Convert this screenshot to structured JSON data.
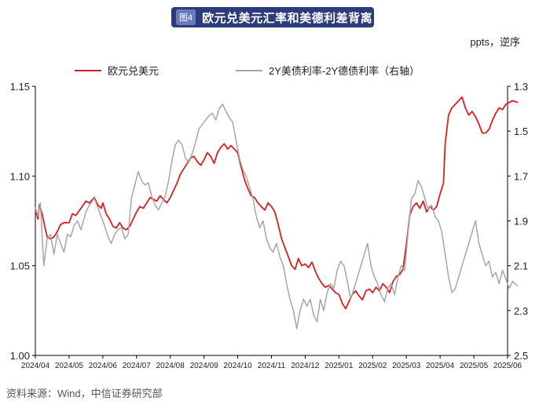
{
  "header": {
    "figure_badge": "图4",
    "title": "欧元兑美元汇率和美德利差背离"
  },
  "unit_label": "ppts，逆序",
  "source": "资料来源：Wind，中信证券研究部",
  "colors": {
    "eur": "#d81e1e",
    "spread": "#a6a6a6",
    "title_bg": "#2c3b7c"
  },
  "chart_data": {
    "type": "line",
    "title": "欧元兑美元汇率和美德利差背离",
    "x_ticks": [
      "2024/04",
      "2024/05",
      "2024/06",
      "2024/07",
      "2024/08",
      "2024/09",
      "2024/10",
      "2024/11",
      "2024/12",
      "2025/01",
      "2025/02",
      "2025/03",
      "2025/04",
      "2025/05",
      "2025/06"
    ],
    "y_left": {
      "min": 1.0,
      "max": 1.15,
      "ticks": [
        "1.00",
        "1.05",
        "1.10",
        "1.15"
      ]
    },
    "y_right": {
      "min": 1.3,
      "max": 2.5,
      "inverted": true,
      "ticks": [
        "1.3",
        "1.5",
        "1.7",
        "1.9",
        "2.1",
        "2.3",
        "2.5"
      ]
    },
    "series": [
      {
        "name": "欧元兑美元",
        "axis": "left",
        "color": "#d81e1e",
        "points": [
          [
            0.0,
            1.081
          ],
          [
            0.08,
            1.076
          ],
          [
            0.12,
            1.084
          ],
          [
            0.2,
            1.079
          ],
          [
            0.28,
            1.072
          ],
          [
            0.35,
            1.066
          ],
          [
            0.45,
            1.065
          ],
          [
            0.55,
            1.066
          ],
          [
            0.65,
            1.069
          ],
          [
            0.75,
            1.073
          ],
          [
            0.85,
            1.074
          ],
          [
            1.0,
            1.074
          ],
          [
            1.1,
            1.079
          ],
          [
            1.2,
            1.078
          ],
          [
            1.35,
            1.082
          ],
          [
            1.5,
            1.086
          ],
          [
            1.6,
            1.085
          ],
          [
            1.75,
            1.088
          ],
          [
            1.85,
            1.084
          ],
          [
            1.95,
            1.082
          ],
          [
            2.0,
            1.085
          ],
          [
            2.1,
            1.079
          ],
          [
            2.2,
            1.076
          ],
          [
            2.3,
            1.072
          ],
          [
            2.4,
            1.071
          ],
          [
            2.5,
            1.074
          ],
          [
            2.6,
            1.071
          ],
          [
            2.7,
            1.07
          ],
          [
            2.8,
            1.072
          ],
          [
            2.9,
            1.076
          ],
          [
            3.0,
            1.08
          ],
          [
            3.1,
            1.083
          ],
          [
            3.2,
            1.082
          ],
          [
            3.3,
            1.085
          ],
          [
            3.4,
            1.088
          ],
          [
            3.5,
            1.087
          ],
          [
            3.6,
            1.086
          ],
          [
            3.7,
            1.089
          ],
          [
            3.8,
            1.087
          ],
          [
            3.9,
            1.085
          ],
          [
            4.0,
            1.088
          ],
          [
            4.1,
            1.092
          ],
          [
            4.2,
            1.096
          ],
          [
            4.3,
            1.101
          ],
          [
            4.4,
            1.104
          ],
          [
            4.5,
            1.107
          ],
          [
            4.6,
            1.11
          ],
          [
            4.7,
            1.111
          ],
          [
            4.8,
            1.108
          ],
          [
            4.9,
            1.106
          ],
          [
            5.0,
            1.109
          ],
          [
            5.1,
            1.113
          ],
          [
            5.2,
            1.111
          ],
          [
            5.3,
            1.107
          ],
          [
            5.4,
            1.113
          ],
          [
            5.5,
            1.116
          ],
          [
            5.6,
            1.118
          ],
          [
            5.7,
            1.115
          ],
          [
            5.8,
            1.117
          ],
          [
            5.9,
            1.115
          ],
          [
            6.0,
            1.113
          ],
          [
            6.1,
            1.105
          ],
          [
            6.2,
            1.098
          ],
          [
            6.3,
            1.093
          ],
          [
            6.4,
            1.089
          ],
          [
            6.5,
            1.088
          ],
          [
            6.6,
            1.085
          ],
          [
            6.7,
            1.083
          ],
          [
            6.8,
            1.081
          ],
          [
            6.9,
            1.085
          ],
          [
            7.0,
            1.083
          ],
          [
            7.1,
            1.08
          ],
          [
            7.2,
            1.073
          ],
          [
            7.3,
            1.065
          ],
          [
            7.4,
            1.06
          ],
          [
            7.5,
            1.055
          ],
          [
            7.6,
            1.05
          ],
          [
            7.7,
            1.048
          ],
          [
            7.8,
            1.054
          ],
          [
            7.9,
            1.05
          ],
          [
            8.0,
            1.051
          ],
          [
            8.1,
            1.049
          ],
          [
            8.2,
            1.052
          ],
          [
            8.3,
            1.047
          ],
          [
            8.4,
            1.043
          ],
          [
            8.5,
            1.04
          ],
          [
            8.6,
            1.038
          ],
          [
            8.7,
            1.039
          ],
          [
            8.8,
            1.037
          ],
          [
            8.9,
            1.035
          ],
          [
            9.0,
            1.034
          ],
          [
            9.1,
            1.029
          ],
          [
            9.2,
            1.026
          ],
          [
            9.3,
            1.03
          ],
          [
            9.4,
            1.034
          ],
          [
            9.5,
            1.036
          ],
          [
            9.6,
            1.033
          ],
          [
            9.7,
            1.031
          ],
          [
            9.8,
            1.036
          ],
          [
            9.9,
            1.037
          ],
          [
            10.0,
            1.035
          ],
          [
            10.1,
            1.038
          ],
          [
            10.2,
            1.036
          ],
          [
            10.3,
            1.04
          ],
          [
            10.4,
            1.038
          ],
          [
            10.5,
            1.035
          ],
          [
            10.6,
            1.041
          ],
          [
            10.7,
            1.044
          ],
          [
            10.8,
            1.045
          ],
          [
            10.9,
            1.048
          ],
          [
            11.0,
            1.062
          ],
          [
            11.1,
            1.078
          ],
          [
            11.2,
            1.083
          ],
          [
            11.3,
            1.085
          ],
          [
            11.4,
            1.082
          ],
          [
            11.5,
            1.086
          ],
          [
            11.6,
            1.08
          ],
          [
            11.7,
            1.083
          ],
          [
            11.8,
            1.081
          ],
          [
            11.9,
            1.083
          ],
          [
            12.0,
            1.09
          ],
          [
            12.1,
            1.096
          ],
          [
            12.15,
            1.118
          ],
          [
            12.25,
            1.134
          ],
          [
            12.35,
            1.138
          ],
          [
            12.45,
            1.14
          ],
          [
            12.55,
            1.142
          ],
          [
            12.65,
            1.144
          ],
          [
            12.75,
            1.138
          ],
          [
            12.85,
            1.134
          ],
          [
            12.95,
            1.136
          ],
          [
            13.05,
            1.133
          ],
          [
            13.15,
            1.129
          ],
          [
            13.25,
            1.124
          ],
          [
            13.35,
            1.124
          ],
          [
            13.45,
            1.126
          ],
          [
            13.55,
            1.131
          ],
          [
            13.65,
            1.135
          ],
          [
            13.75,
            1.138
          ],
          [
            13.85,
            1.137
          ],
          [
            13.95,
            1.14
          ],
          [
            14.05,
            1.141
          ],
          [
            14.15,
            1.142
          ],
          [
            14.3,
            1.141
          ]
        ]
      },
      {
        "name": "2Y美债利率-2Y德债利率（右轴）",
        "axis": "right",
        "color": "#a6a6a6",
        "points": [
          [
            0.0,
            1.84
          ],
          [
            0.08,
            1.88
          ],
          [
            0.15,
            1.82
          ],
          [
            0.25,
            2.1
          ],
          [
            0.35,
            1.98
          ],
          [
            0.45,
            1.96
          ],
          [
            0.55,
            2.05
          ],
          [
            0.65,
            1.96
          ],
          [
            0.75,
            2.0
          ],
          [
            0.85,
            2.04
          ],
          [
            0.95,
            1.96
          ],
          [
            1.05,
            1.97
          ],
          [
            1.15,
            1.92
          ],
          [
            1.25,
            1.9
          ],
          [
            1.35,
            1.94
          ],
          [
            1.5,
            1.86
          ],
          [
            1.6,
            1.83
          ],
          [
            1.75,
            1.8
          ],
          [
            1.85,
            1.84
          ],
          [
            1.95,
            1.88
          ],
          [
            2.05,
            1.92
          ],
          [
            2.15,
            1.97
          ],
          [
            2.25,
            2.0
          ],
          [
            2.35,
            1.96
          ],
          [
            2.45,
            1.94
          ],
          [
            2.55,
            1.93
          ],
          [
            2.65,
            1.98
          ],
          [
            2.75,
            1.96
          ],
          [
            2.85,
            1.8
          ],
          [
            2.95,
            1.74
          ],
          [
            3.05,
            1.68
          ],
          [
            3.15,
            1.72
          ],
          [
            3.25,
            1.74
          ],
          [
            3.35,
            1.73
          ],
          [
            3.45,
            1.79
          ],
          [
            3.55,
            1.83
          ],
          [
            3.65,
            1.85
          ],
          [
            3.75,
            1.82
          ],
          [
            3.85,
            1.79
          ],
          [
            3.95,
            1.72
          ],
          [
            4.05,
            1.63
          ],
          [
            4.15,
            1.56
          ],
          [
            4.25,
            1.54
          ],
          [
            4.35,
            1.56
          ],
          [
            4.45,
            1.62
          ],
          [
            4.55,
            1.64
          ],
          [
            4.65,
            1.6
          ],
          [
            4.75,
            1.55
          ],
          [
            4.85,
            1.49
          ],
          [
            4.95,
            1.47
          ],
          [
            5.05,
            1.45
          ],
          [
            5.15,
            1.43
          ],
          [
            5.25,
            1.42
          ],
          [
            5.35,
            1.45
          ],
          [
            5.45,
            1.4
          ],
          [
            5.55,
            1.38
          ],
          [
            5.65,
            1.41
          ],
          [
            5.75,
            1.44
          ],
          [
            5.85,
            1.46
          ],
          [
            5.95,
            1.54
          ],
          [
            6.05,
            1.62
          ],
          [
            6.15,
            1.67
          ],
          [
            6.25,
            1.7
          ],
          [
            6.35,
            1.75
          ],
          [
            6.45,
            1.8
          ],
          [
            6.55,
            1.88
          ],
          [
            6.65,
            1.93
          ],
          [
            6.75,
            1.9
          ],
          [
            6.85,
            1.98
          ],
          [
            6.95,
            2.02
          ],
          [
            7.05,
            2.04
          ],
          [
            7.15,
            2.0
          ],
          [
            7.25,
            2.06
          ],
          [
            7.35,
            2.1
          ],
          [
            7.45,
            2.18
          ],
          [
            7.55,
            2.25
          ],
          [
            7.65,
            2.3
          ],
          [
            7.75,
            2.38
          ],
          [
            7.85,
            2.3
          ],
          [
            7.95,
            2.25
          ],
          [
            8.05,
            2.28
          ],
          [
            8.15,
            2.25
          ],
          [
            8.25,
            2.32
          ],
          [
            8.35,
            2.35
          ],
          [
            8.45,
            2.25
          ],
          [
            8.55,
            2.3
          ],
          [
            8.65,
            2.22
          ],
          [
            8.75,
            2.18
          ],
          [
            8.85,
            2.2
          ],
          [
            8.95,
            2.12
          ],
          [
            9.05,
            2.08
          ],
          [
            9.15,
            2.1
          ],
          [
            9.25,
            2.17
          ],
          [
            9.35,
            2.25
          ],
          [
            9.45,
            2.2
          ],
          [
            9.55,
            2.15
          ],
          [
            9.65,
            2.1
          ],
          [
            9.75,
            2.05
          ],
          [
            9.85,
            2.0
          ],
          [
            9.95,
            2.1
          ],
          [
            10.05,
            2.15
          ],
          [
            10.15,
            2.18
          ],
          [
            10.25,
            2.23
          ],
          [
            10.35,
            2.26
          ],
          [
            10.45,
            2.2
          ],
          [
            10.55,
            2.18
          ],
          [
            10.65,
            2.23
          ],
          [
            10.75,
            2.15
          ],
          [
            10.85,
            2.1
          ],
          [
            10.95,
            2.12
          ],
          [
            11.05,
            1.95
          ],
          [
            11.15,
            1.8
          ],
          [
            11.25,
            1.78
          ],
          [
            11.35,
            1.72
          ],
          [
            11.45,
            1.75
          ],
          [
            11.55,
            1.8
          ],
          [
            11.65,
            1.85
          ],
          [
            11.75,
            1.83
          ],
          [
            11.85,
            1.88
          ],
          [
            11.95,
            1.9
          ],
          [
            12.05,
            1.95
          ],
          [
            12.15,
            2.05
          ],
          [
            12.25,
            2.15
          ],
          [
            12.35,
            2.22
          ],
          [
            12.45,
            2.2
          ],
          [
            12.55,
            2.15
          ],
          [
            12.65,
            2.1
          ],
          [
            12.75,
            2.05
          ],
          [
            12.85,
            2.0
          ],
          [
            12.95,
            1.95
          ],
          [
            13.05,
            1.9
          ],
          [
            13.15,
            2.0
          ],
          [
            13.25,
            2.05
          ],
          [
            13.35,
            2.1
          ],
          [
            13.45,
            2.08
          ],
          [
            13.55,
            2.15
          ],
          [
            13.65,
            2.13
          ],
          [
            13.75,
            2.18
          ],
          [
            13.85,
            2.12
          ],
          [
            13.95,
            2.16
          ],
          [
            14.05,
            2.2
          ],
          [
            14.15,
            2.17
          ],
          [
            14.3,
            2.19
          ]
        ]
      }
    ]
  }
}
